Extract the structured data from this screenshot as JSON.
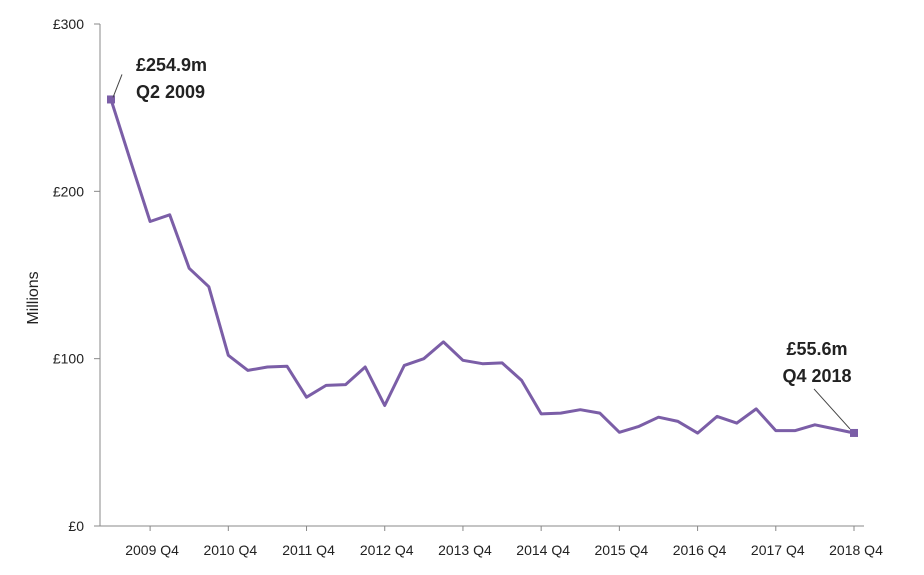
{
  "chart_data": {
    "type": "line",
    "ylabel": "Millions",
    "xlabel": "",
    "ylim": [
      0,
      300
    ],
    "y_ticks": [
      0,
      100,
      200,
      300
    ],
    "y_tick_labels": [
      "£0",
      "£100",
      "£200",
      "£300"
    ],
    "x_tick_labels": [
      "2009 Q4",
      "2010 Q4",
      "2011 Q4",
      "2012 Q4",
      "2013 Q4",
      "2014 Q4",
      "2015 Q4",
      "2016 Q4",
      "2017 Q4",
      "2018 Q4"
    ],
    "x_tick_indices": [
      2,
      6,
      10,
      14,
      18,
      22,
      26,
      30,
      34,
      38
    ],
    "grid": false,
    "legend": "none",
    "line_color": "#7b5ea7",
    "series": [
      {
        "values": [
          254.9,
          218,
          182,
          186,
          154,
          143,
          102,
          93,
          95,
          95.5,
          77,
          84,
          84.5,
          95,
          72,
          96,
          100,
          110,
          99,
          97,
          97.5,
          87,
          67,
          67.5,
          69.5,
          67.5,
          56,
          59.5,
          65,
          62.5,
          55.5,
          65.5,
          61.5,
          70,
          57,
          57,
          60.5,
          58,
          55.6
        ]
      }
    ],
    "annotations": [
      {
        "value_text": "£254.9m",
        "period_text": "Q2 2009",
        "index": 0
      },
      {
        "value_text": "£55.6m",
        "period_text": "Q4 2018",
        "index": 38
      }
    ]
  }
}
